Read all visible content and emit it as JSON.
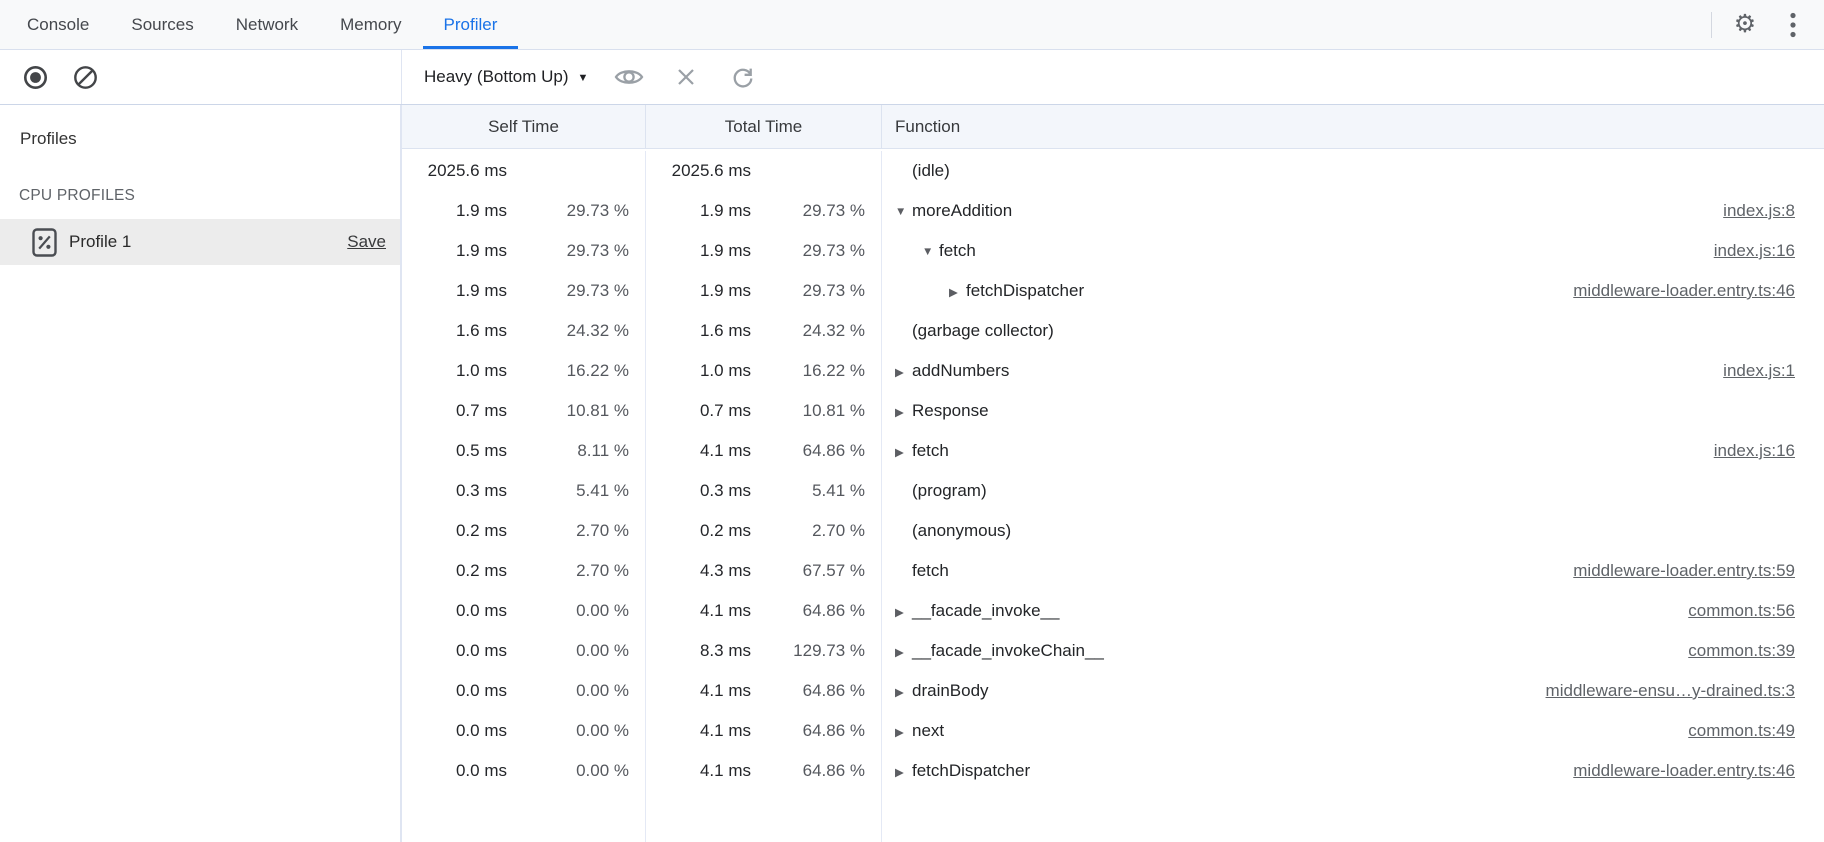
{
  "tabbar": {
    "tabs": [
      {
        "label": "Console",
        "active": false
      },
      {
        "label": "Sources",
        "active": false
      },
      {
        "label": "Network",
        "active": false
      },
      {
        "label": "Memory",
        "active": false
      },
      {
        "label": "Profiler",
        "active": true
      }
    ]
  },
  "toolbar": {
    "view_selector": "Heavy (Bottom Up)",
    "caret": "▼"
  },
  "sidebar": {
    "profiles_label": "Profiles",
    "section_label": "CPU PROFILES",
    "profile": {
      "name": "Profile 1",
      "save_label": "Save"
    }
  },
  "table": {
    "columns": {
      "self": "Self Time",
      "total": "Total Time",
      "fn": "Function"
    },
    "rows": [
      {
        "self_ms": "2025.6 ms",
        "self_pct": "",
        "total_ms": "2025.6 ms",
        "total_pct": "",
        "fn": "(idle)",
        "expander": "none",
        "level": 0,
        "link": ""
      },
      {
        "self_ms": "1.9 ms",
        "self_pct": "29.73 %",
        "total_ms": "1.9 ms",
        "total_pct": "29.73 %",
        "fn": "moreAddition",
        "expander": "down",
        "level": 0,
        "link": "index.js:8"
      },
      {
        "self_ms": "1.9 ms",
        "self_pct": "29.73 %",
        "total_ms": "1.9 ms",
        "total_pct": "29.73 %",
        "fn": "fetch",
        "expander": "down",
        "level": 1,
        "link": "index.js:16"
      },
      {
        "self_ms": "1.9 ms",
        "self_pct": "29.73 %",
        "total_ms": "1.9 ms",
        "total_pct": "29.73 %",
        "fn": "fetchDispatcher",
        "expander": "right",
        "level": 2,
        "link": "middleware-loader.entry.ts:46"
      },
      {
        "self_ms": "1.6 ms",
        "self_pct": "24.32 %",
        "total_ms": "1.6 ms",
        "total_pct": "24.32 %",
        "fn": "(garbage collector)",
        "expander": "none",
        "level": 0,
        "link": ""
      },
      {
        "self_ms": "1.0 ms",
        "self_pct": "16.22 %",
        "total_ms": "1.0 ms",
        "total_pct": "16.22 %",
        "fn": "addNumbers",
        "expander": "right",
        "level": 0,
        "link": "index.js:1"
      },
      {
        "self_ms": "0.7 ms",
        "self_pct": "10.81 %",
        "total_ms": "0.7 ms",
        "total_pct": "10.81 %",
        "fn": "Response",
        "expander": "right",
        "level": 0,
        "link": ""
      },
      {
        "self_ms": "0.5 ms",
        "self_pct": "8.11 %",
        "total_ms": "4.1 ms",
        "total_pct": "64.86 %",
        "fn": "fetch",
        "expander": "right",
        "level": 0,
        "link": "index.js:16"
      },
      {
        "self_ms": "0.3 ms",
        "self_pct": "5.41 %",
        "total_ms": "0.3 ms",
        "total_pct": "5.41 %",
        "fn": "(program)",
        "expander": "none",
        "level": 0,
        "link": ""
      },
      {
        "self_ms": "0.2 ms",
        "self_pct": "2.70 %",
        "total_ms": "0.2 ms",
        "total_pct": "2.70 %",
        "fn": "(anonymous)",
        "expander": "none",
        "level": 0,
        "link": ""
      },
      {
        "self_ms": "0.2 ms",
        "self_pct": "2.70 %",
        "total_ms": "4.3 ms",
        "total_pct": "67.57 %",
        "fn": "fetch",
        "expander": "none",
        "level": 0,
        "link": "middleware-loader.entry.ts:59"
      },
      {
        "self_ms": "0.0 ms",
        "self_pct": "0.00 %",
        "total_ms": "4.1 ms",
        "total_pct": "64.86 %",
        "fn": "__facade_invoke__",
        "expander": "right",
        "level": 0,
        "link": "common.ts:56"
      },
      {
        "self_ms": "0.0 ms",
        "self_pct": "0.00 %",
        "total_ms": "8.3 ms",
        "total_pct": "129.73 %",
        "fn": "__facade_invokeChain__",
        "expander": "right",
        "level": 0,
        "link": "common.ts:39"
      },
      {
        "self_ms": "0.0 ms",
        "self_pct": "0.00 %",
        "total_ms": "4.1 ms",
        "total_pct": "64.86 %",
        "fn": "drainBody",
        "expander": "right",
        "level": 0,
        "link": "middleware-ensu…y-drained.ts:3"
      },
      {
        "self_ms": "0.0 ms",
        "self_pct": "0.00 %",
        "total_ms": "4.1 ms",
        "total_pct": "64.86 %",
        "fn": "next",
        "expander": "right",
        "level": 0,
        "link": "common.ts:49"
      },
      {
        "self_ms": "0.0 ms",
        "self_pct": "0.00 %",
        "total_ms": "4.1 ms",
        "total_pct": "64.86 %",
        "fn": "fetchDispatcher",
        "expander": "right",
        "level": 0,
        "link": "middleware-loader.entry.ts:46"
      }
    ]
  },
  "icons": {
    "expander_down": "▼",
    "expander_right": "▶",
    "gear": "⚙"
  },
  "colors": {
    "accent_blue": "#1a73e8",
    "grid_line": "#e4e9f5",
    "header_bg": "#f3f6fb",
    "selected_row_bg": "#ececec",
    "link_gray": "#5f6368"
  }
}
